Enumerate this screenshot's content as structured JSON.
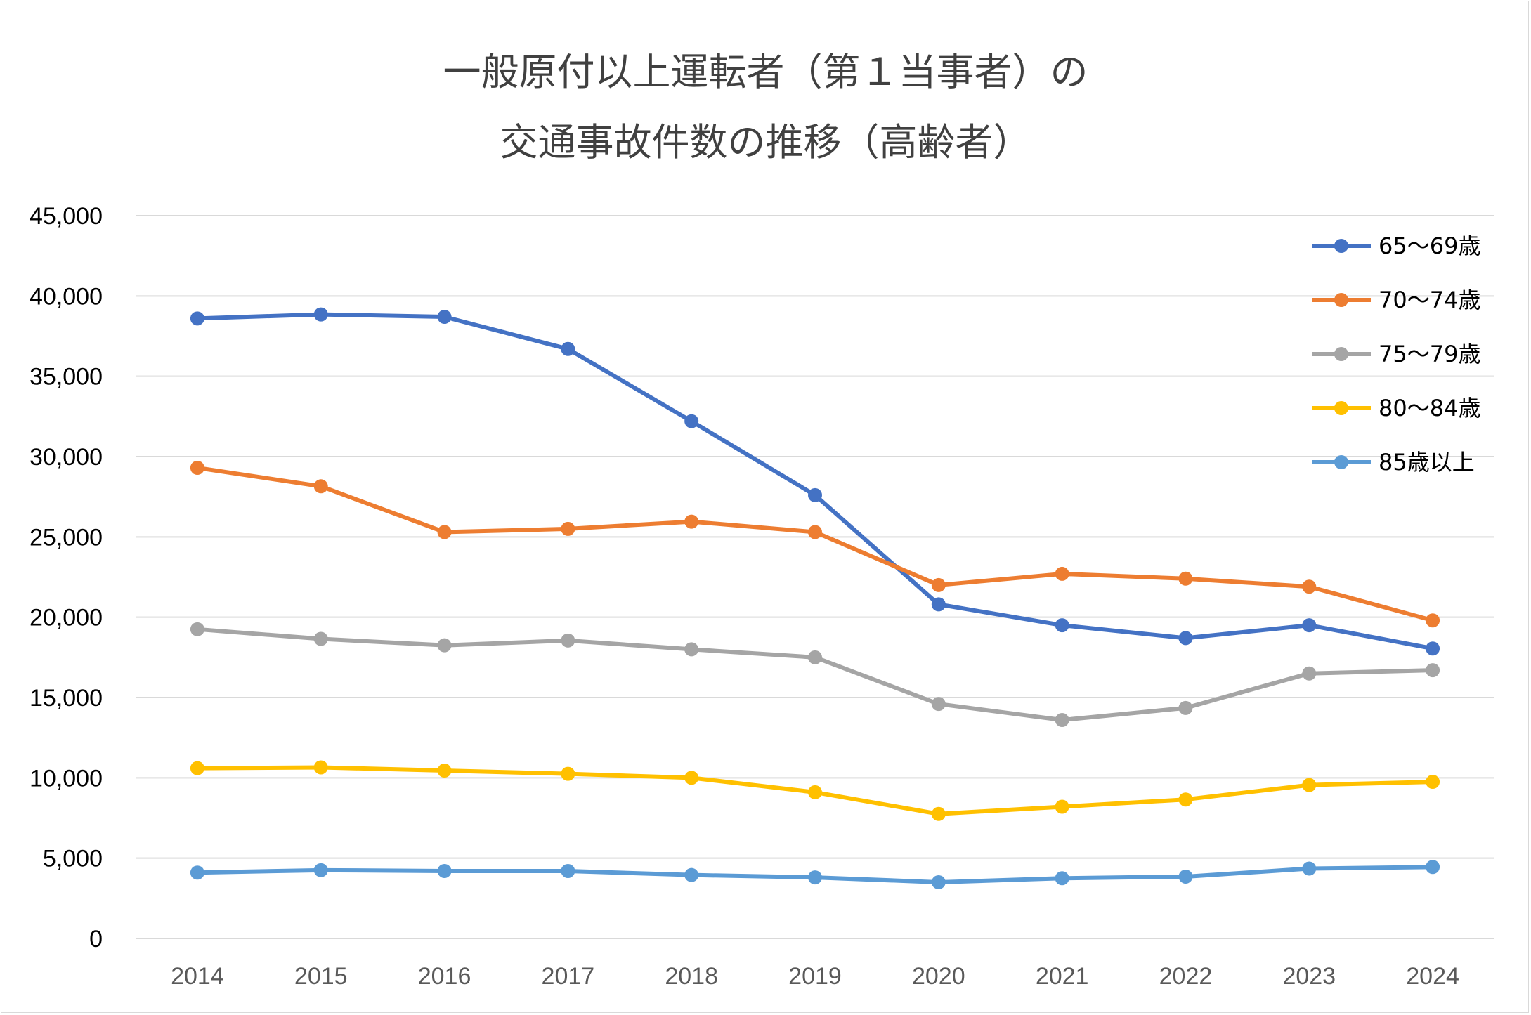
{
  "chart_data": {
    "type": "line",
    "title_lines": [
      "一般原付以上運転者（第１当事者）の",
      "交通事故件数の推移（高齢者）"
    ],
    "xlabel": "",
    "ylabel": "",
    "categories": [
      "2014",
      "2015",
      "2016",
      "2017",
      "2018",
      "2019",
      "2020",
      "2021",
      "2022",
      "2023",
      "2024"
    ],
    "ylim": [
      0,
      45000
    ],
    "yticks": [
      0,
      5000,
      10000,
      15000,
      20000,
      25000,
      30000,
      35000,
      40000,
      45000
    ],
    "ytick_labels": [
      "0",
      "5,000",
      "10,000",
      "15,000",
      "20,000",
      "25,000",
      "30,000",
      "35,000",
      "40,000",
      "45,000"
    ],
    "grid": true,
    "legend_position": "right",
    "series": [
      {
        "name": "65～69歳",
        "color": "#4472C4",
        "values": [
          38600,
          38850,
          38700,
          36700,
          32200,
          27600,
          20800,
          19500,
          18700,
          19500,
          18050
        ]
      },
      {
        "name": "70～74歳",
        "color": "#ED7D31",
        "values": [
          29300,
          28150,
          25300,
          25500,
          25950,
          25300,
          22000,
          22700,
          22400,
          21900,
          19800
        ]
      },
      {
        "name": "75～79歳",
        "color": "#A5A5A5",
        "values": [
          19250,
          18650,
          18250,
          18550,
          18000,
          17500,
          14600,
          13600,
          14350,
          16500,
          16700
        ]
      },
      {
        "name": "80～84歳",
        "color": "#FFC000",
        "values": [
          10600,
          10650,
          10450,
          10250,
          10000,
          9100,
          7750,
          8200,
          8650,
          9550,
          9750
        ]
      },
      {
        "name": "85歳以上",
        "color": "#5B9BD5",
        "values": [
          4100,
          4250,
          4200,
          4200,
          3950,
          3800,
          3500,
          3750,
          3850,
          4350,
          4450
        ]
      }
    ]
  }
}
